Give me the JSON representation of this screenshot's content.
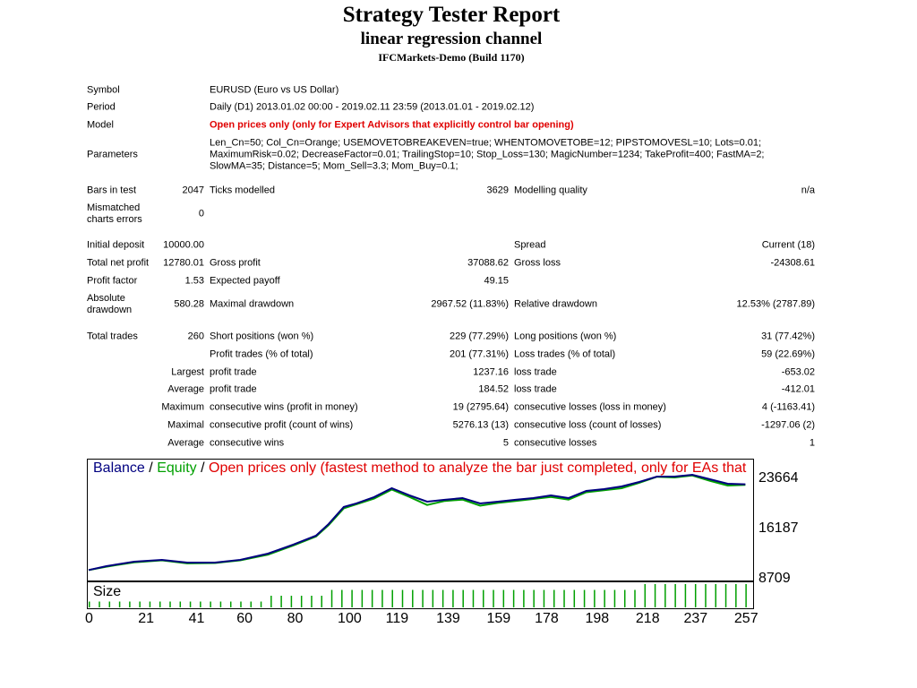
{
  "header": {
    "title": "Strategy Tester Report",
    "subtitle": "linear regression channel",
    "server": "IFCMarkets-Demo (Build 1170)"
  },
  "info": [
    {
      "label": "Symbol",
      "value": "EURUSD (Euro vs US Dollar)"
    },
    {
      "label": "Period",
      "value": "Daily (D1) 2013.01.02 00:00 - 2019.02.11 23:59 (2013.01.01 - 2019.02.12)"
    },
    {
      "label": "Model",
      "value": "Open prices only (only for Expert Advisors that explicitly control bar opening)"
    },
    {
      "label": "Parameters",
      "value": "Len_Cn=50; Col_Cn=Orange; USEMOVETOBREAKEVEN=true; WHENTOMOVETOBE=12; PIPSTOMOVESL=10; Lots=0.01; MaximumRisk=0.02; DecreaseFactor=0.01; TrailingStop=10; Stop_Loss=130; MagicNumber=1234; TakeProfit=400; FastMA=2; SlowMA=35; Distance=5; Mom_Sell=3.3; Mom_Buy=0.1;"
    }
  ],
  "stats": [
    [
      "Bars in test",
      "2047",
      "Ticks modelled",
      "3629",
      "Modelling quality",
      "n/a"
    ],
    [
      "Mismatched charts errors",
      "0",
      null,
      null,
      null,
      null
    ],
    [
      "Initial deposit",
      "10000.00",
      null,
      null,
      "Spread",
      "Current (18)"
    ],
    [
      "Total net profit",
      "12780.01",
      "Gross profit",
      "37088.62",
      "Gross loss",
      "-24308.61"
    ],
    [
      "Profit factor",
      "1.53",
      "Expected payoff",
      "49.15",
      null,
      null
    ],
    [
      "Absolute drawdown",
      "580.28",
      "Maximal drawdown",
      "2967.52 (11.83%)",
      "Relative drawdown",
      "12.53% (2787.89)"
    ],
    [
      "Total trades",
      "260",
      "Short positions (won %)",
      "229 (77.29%)",
      "Long positions (won %)",
      "31 (77.42%)"
    ],
    [
      null,
      null,
      "Profit trades (% of total)",
      "201 (77.31%)",
      "Loss trades (% of total)",
      "59 (22.69%)"
    ],
    [
      null,
      "Largest",
      "profit trade",
      "1237.16",
      "loss trade",
      "-653.02"
    ],
    [
      null,
      "Average",
      "profit trade",
      "184.52",
      "loss trade",
      "-412.01"
    ],
    [
      null,
      "Maximum",
      "consecutive wins (profit in money)",
      "19 (2795.64)",
      "consecutive losses (loss in money)",
      "4 (-1163.41)"
    ],
    [
      null,
      "Maximal",
      "consecutive profit (count of wins)",
      "5276.13 (13)",
      "consecutive loss (count of losses)",
      "-1297.06 (2)"
    ],
    [
      null,
      "Average",
      "consecutive wins",
      "5",
      "consecutive losses",
      "1"
    ]
  ],
  "chart": {
    "type": "line",
    "legend": {
      "separator": "/",
      "model": "Open prices only (fastest method to analyze the bar just completed, only for EAs that"
    },
    "x": [
      0,
      7,
      18,
      29,
      39,
      50,
      60,
      71,
      81,
      90,
      95,
      101,
      106,
      113,
      120,
      127,
      134,
      141,
      148,
      155,
      162,
      169,
      176,
      183,
      190,
      197,
      204,
      211,
      218,
      225,
      232,
      239,
      246,
      253,
      260
    ],
    "series": [
      {
        "name": "Equity",
        "color": "#00a000",
        "values": [
          10000,
          10500,
          11150,
          11450,
          11000,
          11050,
          11450,
          12300,
          13650,
          15000,
          16700,
          19200,
          19800,
          20650,
          22000,
          20900,
          19700,
          20300,
          20500,
          19600,
          20000,
          20300,
          20600,
          20900,
          20500,
          21600,
          21900,
          22200,
          23000,
          23900,
          23800,
          24100,
          23300,
          22600,
          22700
        ]
      },
      {
        "name": "Balance",
        "color": "#000080",
        "values": [
          10000,
          10580,
          11250,
          11520,
          11120,
          11120,
          11520,
          12450,
          13790,
          15120,
          16860,
          19400,
          19930,
          20870,
          22200,
          21130,
          20200,
          20470,
          20730,
          19930,
          20200,
          20470,
          20730,
          21130,
          20730,
          21800,
          22060,
          22460,
          23130,
          23930,
          23930,
          24200,
          23530,
          22860,
          22780
        ]
      }
    ],
    "xlim": [
      0,
      262
    ],
    "ylim": [
      8442,
      26602
    ],
    "yticks": [
      23664,
      16187,
      8709
    ],
    "xticks": [
      0,
      21,
      41,
      60,
      80,
      100,
      119,
      139,
      159,
      178,
      198,
      218,
      237,
      257
    ],
    "size": {
      "label": "Size",
      "color": "#00a000",
      "x": [
        0,
        4,
        8,
        12,
        16,
        20,
        24,
        28,
        32,
        36,
        40,
        44,
        48,
        52,
        56,
        60,
        64,
        68,
        72,
        76,
        80,
        84,
        88,
        92,
        96,
        100,
        104,
        108,
        112,
        116,
        120,
        124,
        128,
        132,
        136,
        140,
        144,
        148,
        152,
        156,
        160,
        164,
        168,
        172,
        176,
        180,
        184,
        188,
        192,
        196,
        200,
        204,
        208,
        212,
        216,
        220,
        224,
        228,
        232,
        236,
        240,
        244,
        248,
        252,
        256,
        260
      ],
      "values": [
        0.01,
        0.01,
        0.01,
        0.01,
        0.01,
        0.01,
        0.01,
        0.01,
        0.01,
        0.01,
        0.01,
        0.01,
        0.01,
        0.01,
        0.01,
        0.01,
        0.01,
        0.01,
        0.02,
        0.02,
        0.02,
        0.02,
        0.02,
        0.02,
        0.03,
        0.03,
        0.03,
        0.03,
        0.03,
        0.03,
        0.03,
        0.03,
        0.03,
        0.03,
        0.03,
        0.03,
        0.03,
        0.03,
        0.03,
        0.03,
        0.03,
        0.03,
        0.03,
        0.03,
        0.03,
        0.03,
        0.03,
        0.03,
        0.03,
        0.03,
        0.03,
        0.03,
        0.03,
        0.03,
        0.03,
        0.04,
        0.04,
        0.04,
        0.04,
        0.04,
        0.04,
        0.04,
        0.04,
        0.04,
        0.04,
        0.04
      ]
    }
  }
}
